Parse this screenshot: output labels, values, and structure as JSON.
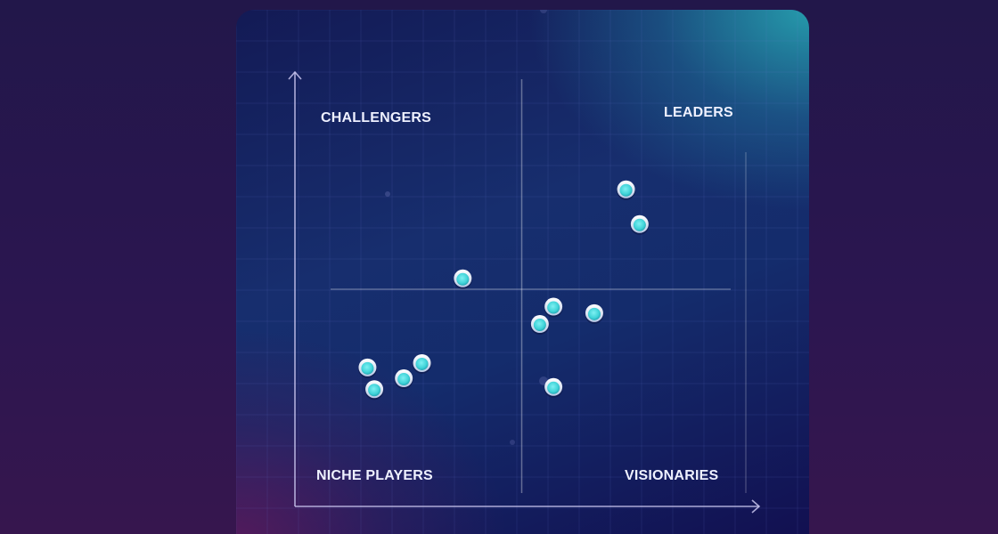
{
  "colors": {
    "point_fill": "#3fd3d8",
    "point_ring": "#e8f6fb",
    "axis": "#c9c6ee",
    "grid": "#6f7bd8",
    "label": "#eef0ff"
  },
  "chart_data": {
    "type": "scatter",
    "title": "",
    "xlabel": "",
    "ylabel": "",
    "xlim": [
      0,
      10
    ],
    "ylim": [
      0,
      10
    ],
    "grid": true,
    "quadrant_labels": {
      "top_left": "CHALLENGERS",
      "top_right": "LEADERS",
      "bottom_left": "NICHE PLAYERS",
      "bottom_right": "VISIONARIES"
    },
    "divider": {
      "x": 5.0,
      "y": 5.0
    },
    "series": [
      {
        "points": [
          {
            "x": 7.3,
            "y": 7.3
          },
          {
            "x": 7.6,
            "y": 6.5
          },
          {
            "x": 3.7,
            "y": 5.25
          },
          {
            "x": 5.7,
            "y": 4.6
          },
          {
            "x": 6.6,
            "y": 4.45
          },
          {
            "x": 5.4,
            "y": 4.2
          },
          {
            "x": 2.8,
            "y": 3.3
          },
          {
            "x": 1.6,
            "y": 3.2
          },
          {
            "x": 2.4,
            "y": 2.95
          },
          {
            "x": 1.75,
            "y": 2.7
          },
          {
            "x": 5.7,
            "y": 2.75
          }
        ]
      }
    ]
  }
}
